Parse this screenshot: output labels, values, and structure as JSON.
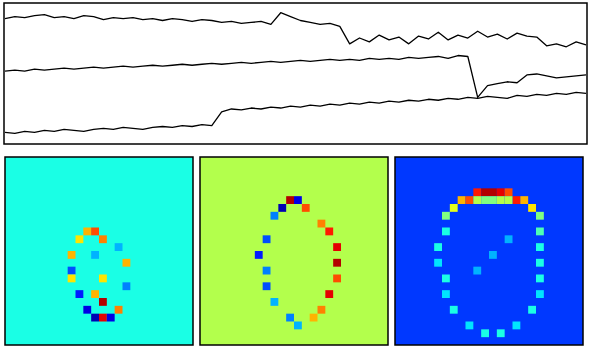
{
  "chart_data": [
    {
      "type": "line",
      "tick_labels": false,
      "x": [
        0,
        1,
        2,
        3,
        4,
        5,
        6,
        7,
        8,
        9,
        10,
        11,
        12,
        13,
        14,
        15,
        16,
        17,
        18,
        19,
        20,
        21,
        22,
        23,
        24,
        25,
        26,
        27,
        28,
        29,
        30,
        31,
        32,
        33,
        34,
        35,
        36,
        37,
        38,
        39,
        40,
        41,
        42,
        43,
        44,
        45,
        46,
        47,
        48,
        49,
        50,
        51,
        52,
        53,
        54,
        55,
        56,
        57,
        58,
        59
      ],
      "xlim": [
        0,
        59
      ],
      "ylim": [
        0,
        145
      ],
      "series": [
        {
          "color": "#000000",
          "values": [
            129,
            131,
            130,
            132,
            133,
            130,
            131,
            129,
            132,
            131,
            128,
            130,
            129,
            130,
            128,
            129,
            127,
            129,
            128,
            126,
            128,
            127,
            125,
            126,
            124,
            125,
            126,
            123,
            135,
            131,
            127,
            125,
            123,
            124,
            121,
            103,
            109,
            105,
            112,
            107,
            110,
            103,
            111,
            108,
            115,
            107,
            112,
            109,
            116,
            110,
            113,
            108,
            114,
            111,
            110,
            101,
            103,
            100,
            105,
            102
          ]
        },
        {
          "color": "#000000",
          "values": [
            75,
            76,
            75,
            77,
            76,
            77,
            78,
            77,
            78,
            79,
            78,
            79,
            80,
            79,
            80,
            81,
            80,
            81,
            82,
            81,
            82,
            83,
            82,
            83,
            84,
            83,
            84,
            85,
            84,
            85,
            86,
            85,
            86,
            87,
            86,
            87,
            86,
            88,
            87,
            88,
            87,
            89,
            88,
            89,
            90,
            88,
            91,
            90,
            48,
            60,
            62,
            64,
            63,
            71,
            72,
            70,
            68,
            69,
            70,
            71
          ]
        },
        {
          "color": "#000000",
          "values": [
            12,
            11,
            13,
            12,
            14,
            13,
            15,
            14,
            13,
            15,
            16,
            15,
            17,
            16,
            15,
            17,
            18,
            17,
            19,
            18,
            20,
            19,
            33,
            36,
            35,
            37,
            36,
            38,
            37,
            39,
            38,
            40,
            39,
            41,
            40,
            42,
            41,
            43,
            42,
            44,
            43,
            45,
            44,
            46,
            45,
            47,
            46,
            48,
            47,
            49,
            48,
            47,
            50,
            49,
            51,
            50,
            52,
            51,
            53,
            52
          ]
        }
      ]
    },
    {
      "type": "heatmap",
      "shape": [
        24,
        24
      ],
      "clim": [
        -1,
        1
      ],
      "background": -0.2,
      "spots": [
        [
          9,
          10,
          0.4
        ],
        [
          9,
          11,
          0.6
        ],
        [
          10,
          9,
          0.3
        ],
        [
          10,
          12,
          0.5
        ],
        [
          12,
          8,
          0.4
        ],
        [
          14,
          8,
          -0.6
        ],
        [
          15,
          8,
          0.3
        ],
        [
          17,
          9,
          -0.7
        ],
        [
          19,
          10,
          -0.8
        ],
        [
          20,
          11,
          -0.9
        ],
        [
          20,
          12,
          0.8
        ],
        [
          20,
          13,
          -0.8
        ],
        [
          19,
          14,
          0.5
        ],
        [
          18,
          12,
          0.9
        ],
        [
          16,
          15,
          -0.5
        ],
        [
          13,
          15,
          0.4
        ],
        [
          11,
          14,
          -0.4
        ],
        [
          15,
          12,
          0.3
        ],
        [
          17,
          11,
          0.4
        ],
        [
          12,
          11,
          -0.4
        ]
      ]
    },
    {
      "type": "heatmap",
      "shape": [
        24,
        24
      ],
      "clim": [
        -1,
        1
      ],
      "background": 0.1,
      "spots": [
        [
          5,
          11,
          0.9
        ],
        [
          5,
          12,
          -0.8
        ],
        [
          6,
          10,
          -0.9
        ],
        [
          6,
          13,
          0.6
        ],
        [
          7,
          9,
          -0.5
        ],
        [
          8,
          15,
          0.5
        ],
        [
          9,
          16,
          0.7
        ],
        [
          11,
          17,
          0.8
        ],
        [
          13,
          17,
          0.9
        ],
        [
          15,
          17,
          0.6
        ],
        [
          17,
          16,
          0.8
        ],
        [
          19,
          15,
          0.5
        ],
        [
          10,
          8,
          -0.6
        ],
        [
          12,
          7,
          -0.7
        ],
        [
          14,
          8,
          -0.5
        ],
        [
          16,
          8,
          -0.6
        ],
        [
          18,
          9,
          -0.4
        ],
        [
          20,
          11,
          -0.5
        ],
        [
          21,
          12,
          -0.4
        ],
        [
          20,
          14,
          0.4
        ]
      ]
    },
    {
      "type": "heatmap",
      "shape": [
        24,
        24
      ],
      "clim": [
        0,
        1
      ],
      "background": 0.18,
      "spots": [
        [
          4,
          10,
          0.85
        ],
        [
          4,
          11,
          0.95
        ],
        [
          4,
          12,
          0.95
        ],
        [
          4,
          13,
          0.9
        ],
        [
          4,
          14,
          0.8
        ],
        [
          5,
          8,
          0.7
        ],
        [
          5,
          9,
          0.8
        ],
        [
          5,
          15,
          0.85
        ],
        [
          5,
          16,
          0.7
        ],
        [
          6,
          7,
          0.6
        ],
        [
          6,
          17,
          0.65
        ],
        [
          5,
          10,
          0.55
        ],
        [
          5,
          11,
          0.5
        ],
        [
          5,
          12,
          0.5
        ],
        [
          5,
          13,
          0.55
        ],
        [
          5,
          14,
          0.55
        ],
        [
          7,
          6,
          0.5
        ],
        [
          7,
          18,
          0.5
        ],
        [
          9,
          6,
          0.4
        ],
        [
          11,
          5,
          0.4
        ],
        [
          13,
          5,
          0.35
        ],
        [
          15,
          6,
          0.4
        ],
        [
          17,
          6,
          0.35
        ],
        [
          19,
          7,
          0.4
        ],
        [
          21,
          9,
          0.35
        ],
        [
          22,
          11,
          0.4
        ],
        [
          22,
          13,
          0.4
        ],
        [
          21,
          15,
          0.35
        ],
        [
          19,
          17,
          0.4
        ],
        [
          17,
          18,
          0.35
        ],
        [
          15,
          18,
          0.4
        ],
        [
          13,
          18,
          0.4
        ],
        [
          11,
          18,
          0.4
        ],
        [
          9,
          18,
          0.45
        ],
        [
          12,
          12,
          0.3
        ],
        [
          14,
          10,
          0.3
        ],
        [
          10,
          14,
          0.3
        ]
      ]
    }
  ]
}
